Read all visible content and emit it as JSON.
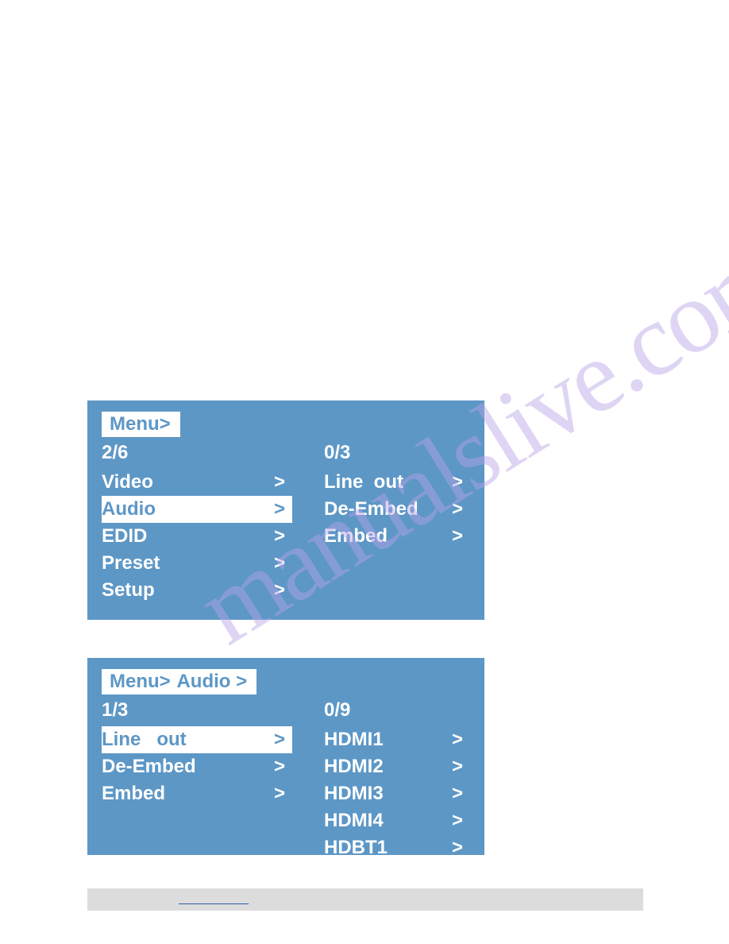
{
  "watermark_text": "manualslive.com",
  "panel1": {
    "breadcrumb": [
      "Menu>"
    ],
    "left_counter": "2/6",
    "right_counter": "0/3",
    "left_items": [
      {
        "label": "Video",
        "selected": false
      },
      {
        "label": "Audio",
        "selected": true
      },
      {
        "label": "EDID",
        "selected": false
      },
      {
        "label": "Preset",
        "selected": false
      },
      {
        "label": "Setup",
        "selected": false
      }
    ],
    "right_items": [
      {
        "label": "Line  out"
      },
      {
        "label": "De-Embed"
      },
      {
        "label": "Embed"
      }
    ]
  },
  "panel2": {
    "breadcrumb": [
      "Menu>",
      "Audio >"
    ],
    "left_counter": "1/3",
    "right_counter": "0/9",
    "left_items": [
      {
        "label": "Line   out",
        "selected": true
      },
      {
        "label": "De-Embed",
        "selected": false
      },
      {
        "label": "Embed",
        "selected": false
      }
    ],
    "right_items": [
      {
        "label": "HDMI1"
      },
      {
        "label": "HDMI2"
      },
      {
        "label": "HDMI3"
      },
      {
        "label": "HDMI4"
      },
      {
        "label": "HDBT1"
      }
    ]
  },
  "colors": {
    "panel_bg": "#5d97c6",
    "highlight_bg": "#ffffff",
    "text_light": "#ffffff",
    "text_accent": "#5d97c6",
    "footer_bg": "#dcdcdc",
    "link_underline": "#2e5aa8",
    "watermark": "#b8a3e8"
  },
  "chevron": ">"
}
